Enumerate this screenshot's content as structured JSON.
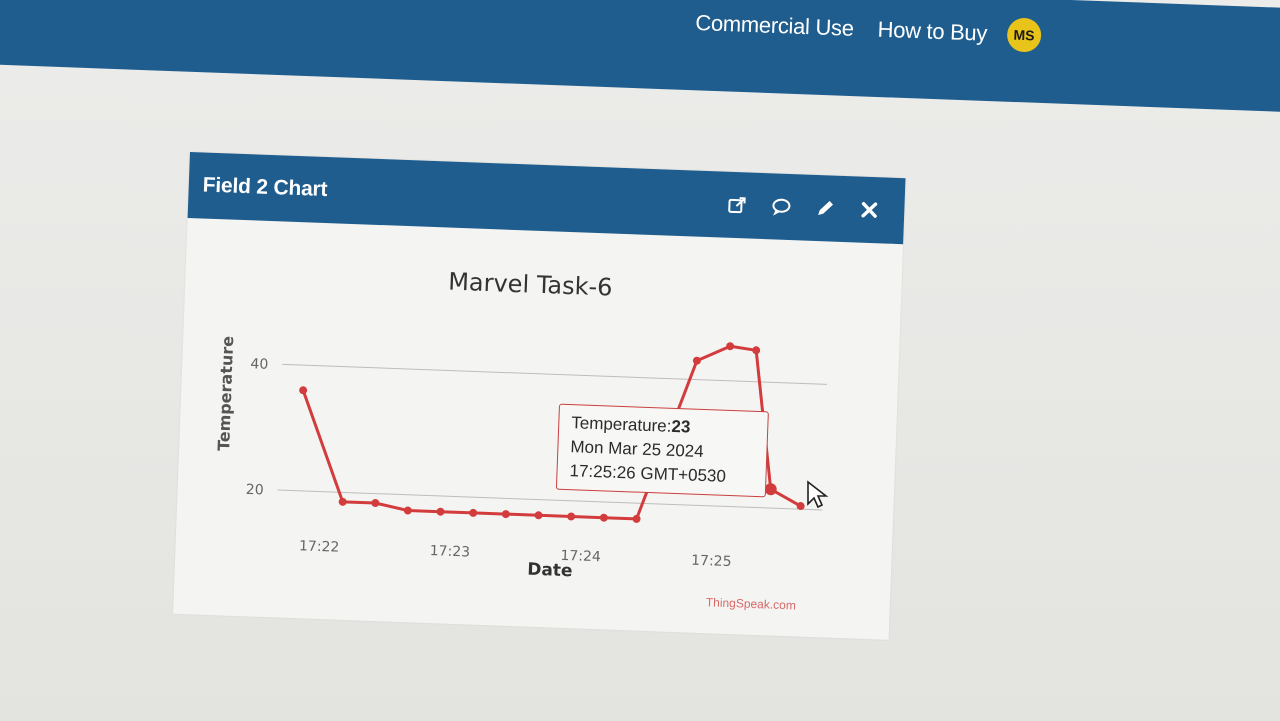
{
  "nav": {
    "commercial_label": "Commercial Use",
    "how_to_buy_label": "How to Buy",
    "avatar_initials": "MS"
  },
  "widget": {
    "title": "Field 2 Chart",
    "tools": [
      "external-link-icon",
      "comment-icon",
      "pencil-icon",
      "close-icon"
    ],
    "credit": "ThingSpeak.com"
  },
  "tooltip": {
    "label": "Temperature:",
    "value": "23",
    "date": "Mon Mar 25 2024",
    "time": "17:25:26 GMT+0530"
  },
  "colors": {
    "header": "#1f5d8e",
    "series": "#d23c3c",
    "avatar": "#e8c31a"
  },
  "chart_data": {
    "type": "line",
    "title": "Marvel Task-6",
    "xlabel": "Date",
    "ylabel": "Temperature",
    "x_ticks": [
      "17:22",
      "17:23",
      "17:24",
      "17:25"
    ],
    "y_ticks": [
      20,
      40
    ],
    "grid": true,
    "series": [
      {
        "values": [
          {
            "x": "17:21:50",
            "y": 36
          },
          {
            "x": "17:22:10",
            "y": 18.5
          },
          {
            "x": "17:22:25",
            "y": 18.5
          },
          {
            "x": "17:22:40",
            "y": 17.5
          },
          {
            "x": "17:22:55",
            "y": 17.5
          },
          {
            "x": "17:23:10",
            "y": 17.5
          },
          {
            "x": "17:23:25",
            "y": 17.5
          },
          {
            "x": "17:23:40",
            "y": 17.5
          },
          {
            "x": "17:23:55",
            "y": 17.5
          },
          {
            "x": "17:24:10",
            "y": 17.5
          },
          {
            "x": "17:24:25",
            "y": 17.5
          },
          {
            "x": "17:24:50",
            "y": 43
          },
          {
            "x": "17:25:05",
            "y": 45.5
          },
          {
            "x": "17:25:17",
            "y": 45
          },
          {
            "x": "17:25:26",
            "y": 23
          },
          {
            "x": "17:25:40",
            "y": 20.5
          }
        ]
      }
    ]
  }
}
